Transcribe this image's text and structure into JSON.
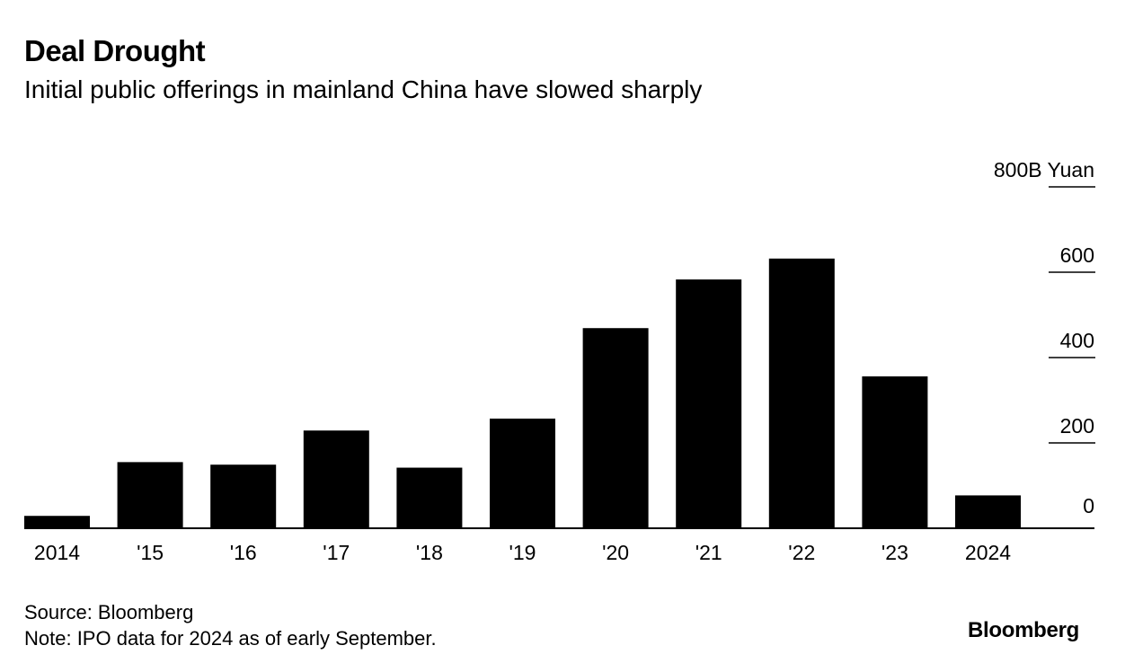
{
  "title": "Deal Drought",
  "subtitle": "Initial public offerings in mainland China have slowed sharply",
  "source": "Source: Bloomberg",
  "note": "Note: IPO data for 2024 as of early September.",
  "logo": "Bloomberg",
  "colors": {
    "bar": "#000000",
    "background": "#ffffff",
    "text": "#000000"
  },
  "chart_data": {
    "type": "bar",
    "categories": [
      "2014",
      "'15",
      "'16",
      "'17",
      "'18",
      "'19",
      "'20",
      "'21",
      "'22",
      "'23",
      "2024"
    ],
    "values": [
      29,
      155,
      149,
      229,
      142,
      257,
      469,
      583,
      632,
      356,
      77
    ],
    "ylim": [
      0,
      800
    ],
    "yticks": [
      0,
      200,
      400,
      600,
      800
    ],
    "ytick_labels": [
      "0",
      "200",
      "400",
      "600",
      "800"
    ],
    "yunit": "B Yuan",
    "xlabel": "",
    "ylabel": "",
    "grid": false,
    "y_axis_position": "right"
  }
}
